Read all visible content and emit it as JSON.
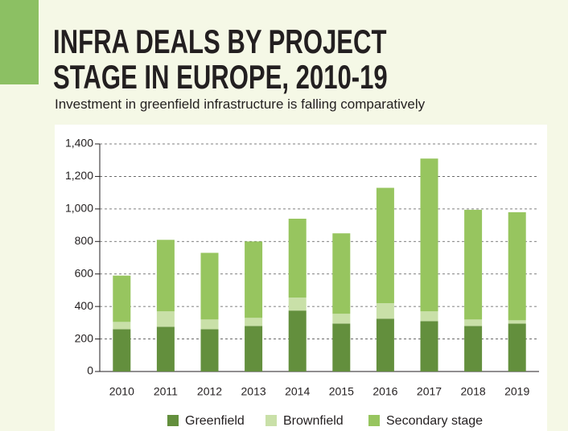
{
  "chart_data": {
    "type": "stacked-bar",
    "title": "INFRA DEALS BY PROJECT STAGE IN EUROPE, 2010-19",
    "subtitle": "Investment in greenfield infrastructure is falling comparatively",
    "categories": [
      "2010",
      "2011",
      "2012",
      "2013",
      "2014",
      "2015",
      "2016",
      "2017",
      "2018",
      "2019"
    ],
    "series": [
      {
        "name": "Greenfield",
        "color": "#638f3d",
        "values": [
          260,
          275,
          260,
          280,
          375,
          295,
          325,
          310,
          280,
          295
        ]
      },
      {
        "name": "Brownfield",
        "color": "#c9e0a8",
        "values": [
          45,
          95,
          60,
          50,
          80,
          60,
          95,
          60,
          40,
          20
        ]
      },
      {
        "name": "Secondary stage",
        "color": "#97c55f",
        "values": [
          285,
          440,
          410,
          470,
          485,
          495,
          710,
          940,
          675,
          665
        ]
      }
    ],
    "ylim": [
      0,
      1400
    ],
    "yticks": [
      0,
      200,
      400,
      600,
      800,
      {
        "value": 1000,
        "label": "1,000"
      },
      {
        "value": 1200,
        "label": "1,200"
      },
      {
        "value": 1400,
        "label": "1,400"
      }
    ],
    "grid": true
  }
}
